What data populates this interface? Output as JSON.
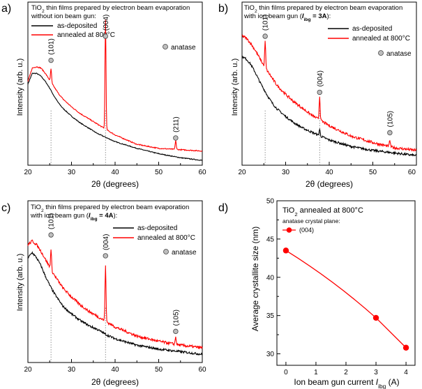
{
  "chart_data": [
    {
      "type": "line",
      "panel_label": "a)",
      "title_lines": [
        "TiO2 thin films prepared by electron beam evaporation",
        "without ion beam gun:"
      ],
      "xlabel": "2θ (degrees)",
      "ylabel": "Intensity (arb. u.)",
      "xlim": [
        20,
        60
      ],
      "xticks": [
        "20",
        "30",
        "40",
        "50",
        "60"
      ],
      "series": [
        {
          "name": "as-deposited",
          "color": "#000000",
          "x": [
            20,
            21,
            22,
            23,
            24,
            25,
            26,
            27,
            28,
            30,
            32,
            34,
            36,
            38,
            40,
            45,
            50,
            55,
            60
          ],
          "y": [
            0.58,
            0.66,
            0.66,
            0.64,
            0.6,
            0.55,
            0.49,
            0.44,
            0.4,
            0.34,
            0.29,
            0.25,
            0.21,
            0.18,
            0.15,
            0.1,
            0.06,
            0.03,
            0.01
          ]
        },
        {
          "name": "annealed at 800°C",
          "color": "#ff0000",
          "x": [
            20,
            21,
            22,
            23,
            24,
            25,
            26,
            27,
            28,
            30,
            32,
            34,
            36,
            38,
            40,
            45,
            50,
            55,
            60
          ],
          "y": [
            0.6,
            0.7,
            0.71,
            0.7,
            0.66,
            0.61,
            0.56,
            0.51,
            0.47,
            0.41,
            0.36,
            0.32,
            0.28,
            0.24,
            0.2,
            0.13,
            0.1,
            0.09,
            0.08
          ],
          "peaks": [
            {
              "x": 25.3,
              "h": 0.1
            },
            {
              "x": 37.8,
              "h": 0.82
            },
            {
              "x": 53.9,
              "h": 0.07
            }
          ]
        }
      ],
      "annotations": [
        {
          "text": "(101)",
          "x": 25.3,
          "y": 0.82
        },
        {
          "text": "(004)",
          "x": 37.8,
          "y": 1.0
        },
        {
          "text": "(211)",
          "x": 53.9,
          "y": 0.24
        }
      ],
      "guides": [
        25.3,
        37.8
      ],
      "marker_legend": "anatase"
    },
    {
      "type": "line",
      "panel_label": "b)",
      "title_lines": [
        "TiO2 thin films prepared by electron beam evaporation",
        "with ion beam gun (Iibg = 3A):"
      ],
      "xlabel": "2θ (degrees)",
      "ylabel": "Intensity (arb. u.)",
      "xlim": [
        20,
        60
      ],
      "xticks": [
        "20",
        "30",
        "40",
        "50",
        "60"
      ],
      "series": [
        {
          "name": "as-deposited",
          "color": "#000000",
          "x": [
            20,
            21,
            22,
            23,
            24,
            25,
            26,
            27,
            28,
            30,
            32,
            34,
            36,
            38,
            40,
            45,
            50,
            55,
            60
          ],
          "y": [
            0.78,
            0.76,
            0.72,
            0.66,
            0.59,
            0.53,
            0.47,
            0.42,
            0.38,
            0.32,
            0.27,
            0.23,
            0.2,
            0.17,
            0.14,
            0.09,
            0.06,
            0.04,
            0.02
          ],
          "peaks": [
            {
              "x": 37.8,
              "h": 0.05
            }
          ]
        },
        {
          "name": "annealed at 800°C",
          "color": "#ff0000",
          "x": [
            20,
            21,
            22,
            23,
            24,
            25,
            26,
            27,
            28,
            30,
            32,
            34,
            36,
            38,
            40,
            45,
            50,
            55,
            60
          ],
          "y": [
            0.94,
            0.92,
            0.88,
            0.83,
            0.77,
            0.71,
            0.66,
            0.61,
            0.56,
            0.49,
            0.43,
            0.38,
            0.33,
            0.29,
            0.25,
            0.17,
            0.12,
            0.08,
            0.06
          ],
          "peaks": [
            {
              "x": 25.3,
              "h": 0.2
            },
            {
              "x": 37.8,
              "h": 0.18
            },
            {
              "x": 53.9,
              "h": 0.05
            }
          ]
        }
      ],
      "annotations": [
        {
          "text": "(101)",
          "x": 25.3,
          "y": 1.0
        },
        {
          "text": "(004)",
          "x": 37.8,
          "y": 0.57
        },
        {
          "text": "(105)",
          "x": 53.9,
          "y": 0.26
        }
      ],
      "guides": [
        25.3,
        37.8
      ],
      "marker_legend": "anatase"
    },
    {
      "type": "line",
      "panel_label": "c)",
      "title_lines": [
        "TiO2 thin films prepared by electron beam evaporation",
        "with ion beam gun (Iibg = 4A):"
      ],
      "xlabel": "2θ (degrees)",
      "ylabel": "Intensity (arb. u.)",
      "xlim": [
        20,
        60
      ],
      "xticks": [
        "20",
        "30",
        "40",
        "50",
        "60"
      ],
      "series": [
        {
          "name": "as-deposited",
          "color": "#000000",
          "x": [
            20,
            21,
            22,
            23,
            24,
            25,
            26,
            27,
            28,
            30,
            32,
            34,
            36,
            38,
            40,
            45,
            50,
            55,
            60
          ],
          "y": [
            0.76,
            0.8,
            0.76,
            0.7,
            0.62,
            0.55,
            0.49,
            0.44,
            0.39,
            0.33,
            0.28,
            0.24,
            0.21,
            0.17,
            0.14,
            0.09,
            0.06,
            0.04,
            0.02
          ]
        },
        {
          "name": "annealed at 800°C",
          "color": "#ff0000",
          "x": [
            20,
            21,
            22,
            23,
            24,
            25,
            26,
            27,
            28,
            30,
            32,
            34,
            36,
            38,
            40,
            45,
            50,
            55,
            60
          ],
          "y": [
            0.86,
            0.89,
            0.86,
            0.81,
            0.75,
            0.69,
            0.63,
            0.58,
            0.53,
            0.46,
            0.4,
            0.35,
            0.31,
            0.27,
            0.23,
            0.16,
            0.12,
            0.09,
            0.07
          ],
          "peaks": [
            {
              "x": 25.3,
              "h": 0.15
            },
            {
              "x": 37.8,
              "h": 0.42
            },
            {
              "x": 53.9,
              "h": 0.06
            }
          ]
        }
      ],
      "annotations": [
        {
          "text": "(101)",
          "x": 25.3,
          "y": 1.0
        },
        {
          "text": "(004)",
          "x": 37.8,
          "y": 0.84
        },
        {
          "text": "(105)",
          "x": 53.9,
          "y": 0.26
        }
      ],
      "guides": [
        25.3,
        37.8
      ],
      "marker_legend": "anatase"
    },
    {
      "type": "line",
      "panel_label": "d)",
      "title": "TiO2 annealed at 800°C",
      "legend_title": "anatase crystal plane:",
      "xlabel": "Ion beam gun current Iibg (A)",
      "ylabel": "Average crystallite size (nm)",
      "xlim": [
        -0.3,
        4.3
      ],
      "ylim": [
        28.5,
        50
      ],
      "xticks": [
        "0",
        "1",
        "2",
        "3",
        "4"
      ],
      "yticks": [
        "30",
        "35",
        "40",
        "45",
        "50"
      ],
      "series": [
        {
          "name": "(004)",
          "color": "#ff0000",
          "x": [
            0,
            3,
            4
          ],
          "y": [
            43.5,
            34.7,
            30.8
          ]
        }
      ]
    }
  ]
}
